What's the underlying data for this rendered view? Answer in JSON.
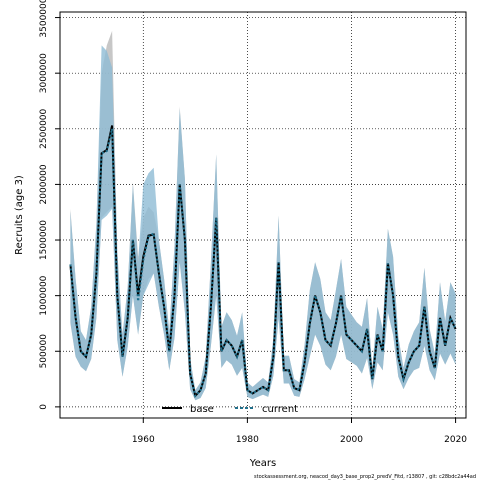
{
  "chart_data": {
    "type": "line",
    "xlabel": "Years",
    "ylabel": "Recruits (age 3)",
    "xlim": [
      1944,
      2022
    ],
    "ylim": [
      -100000,
      3550000
    ],
    "x_ticks": [
      1960,
      1980,
      2000,
      2020
    ],
    "y_ticks": [
      0,
      500000,
      1000000,
      1500000,
      2000000,
      2500000,
      3000000,
      3500000
    ],
    "grid": true,
    "legend_position": "bottom",
    "colors": {
      "band_current": "#8fbcd4",
      "band_base": "#b4b4b4",
      "base": "#000000",
      "current": "#1f6f8b"
    },
    "x": [
      1946,
      1947,
      1948,
      1949,
      1950,
      1951,
      1952,
      1953,
      1954,
      1955,
      1956,
      1957,
      1958,
      1959,
      1960,
      1961,
      1962,
      1963,
      1964,
      1965,
      1966,
      1967,
      1968,
      1969,
      1970,
      1971,
      1972,
      1973,
      1974,
      1975,
      1976,
      1977,
      1978,
      1979,
      1980,
      1981,
      1982,
      1983,
      1984,
      1985,
      1986,
      1987,
      1988,
      1989,
      1990,
      1991,
      1992,
      1993,
      1994,
      1995,
      1996,
      1997,
      1998,
      1999,
      2000,
      2001,
      2002,
      2003,
      2004,
      2005,
      2006,
      2007,
      2008,
      2009,
      2010,
      2011,
      2012,
      2013,
      2014,
      2015,
      2016,
      2017,
      2018,
      2019,
      2020
    ],
    "series": [
      {
        "name": "base",
        "values": [
          1280000,
          800000,
          500000,
          450000,
          650000,
          1200000,
          2280000,
          2310000,
          2530000,
          1000000,
          450000,
          800000,
          1500000,
          1000000,
          1350000,
          1540000,
          1550000,
          1200000,
          900000,
          500000,
          1000000,
          2000000,
          1500000,
          300000,
          100000,
          150000,
          300000,
          900000,
          1700000,
          500000,
          600000,
          550000,
          450000,
          600000,
          150000,
          120000,
          150000,
          180000,
          150000,
          450000,
          1300000,
          330000,
          330000,
          170000,
          150000,
          400000,
          750000,
          1000000,
          850000,
          600000,
          550000,
          750000,
          1000000,
          650000,
          600000,
          550000,
          500000,
          700000,
          250000,
          650000,
          500000,
          1290000,
          1000000,
          450000,
          250000,
          400000,
          500000,
          550000,
          900000,
          500000,
          350000,
          800000,
          550000,
          800000,
          700000
        ],
        "lower": [
          750000,
          450000,
          360000,
          320000,
          430000,
          800000,
          1700000,
          1750000,
          1800000,
          600000,
          270000,
          540000,
          1000000,
          650000,
          1000000,
          1150000,
          1200000,
          900000,
          650000,
          330000,
          620000,
          1300000,
          850000,
          160000,
          60000,
          80000,
          170000,
          550000,
          1000000,
          350000,
          420000,
          380000,
          280000,
          350000,
          90000,
          70000,
          90000,
          110000,
          90000,
          280000,
          800000,
          210000,
          210000,
          100000,
          90000,
          250000,
          450000,
          650000,
          550000,
          380000,
          330000,
          450000,
          650000,
          430000,
          400000,
          370000,
          300000,
          440000,
          160000,
          400000,
          330000,
          850000,
          650000,
          270000,
          160000,
          260000,
          330000,
          350000,
          550000,
          330000,
          240000,
          480000,
          380000,
          480000,
          380000
        ],
        "upper": [
          1780000,
          1150000,
          680000,
          600000,
          900000,
          1650000,
          3000000,
          3250000,
          3380000,
          1400000,
          650000,
          1080000,
          2020000,
          1350000,
          1700000,
          1800000,
          1750000,
          1500000,
          1150000,
          680000,
          1450000,
          2700000,
          2050000,
          440000,
          150000,
          220000,
          450000,
          1300000,
          2270000,
          720000,
          850000,
          780000,
          640000,
          850000,
          220000,
          180000,
          220000,
          260000,
          220000,
          620000,
          1720000,
          460000,
          460000,
          250000,
          220000,
          560000,
          1050000,
          1300000,
          1150000,
          850000,
          780000,
          1050000,
          1330000,
          900000,
          830000,
          760000,
          720000,
          980000,
          350000,
          900000,
          700000,
          1600000,
          1350000,
          630000,
          350000,
          560000,
          680000,
          760000,
          1250000,
          700000,
          480000,
          1120000,
          770000,
          1120000,
          1020000
        ]
      },
      {
        "name": "current",
        "values": [
          1280000,
          800000,
          500000,
          450000,
          650000,
          1200000,
          2280000,
          2300000,
          2500000,
          1000000,
          450000,
          800000,
          1500000,
          950000,
          1320000,
          1530000,
          1560000,
          1200000,
          900000,
          500000,
          1000000,
          2000000,
          1500000,
          300000,
          100000,
          150000,
          300000,
          900000,
          1700000,
          500000,
          600000,
          550000,
          450000,
          600000,
          150000,
          120000,
          150000,
          180000,
          150000,
          450000,
          1300000,
          330000,
          330000,
          170000,
          150000,
          400000,
          750000,
          1000000,
          850000,
          600000,
          550000,
          750000,
          1000000,
          650000,
          600000,
          550000,
          500000,
          700000,
          250000,
          650000,
          500000,
          1290000,
          1000000,
          450000,
          250000,
          400000,
          500000,
          550000,
          900000,
          500000,
          350000,
          800000,
          550000,
          800000,
          700000
        ],
        "lower": [
          760000,
          450000,
          360000,
          320000,
          430000,
          800000,
          1680000,
          1720000,
          1780000,
          600000,
          270000,
          540000,
          1000000,
          650000,
          1000000,
          1100000,
          1200000,
          900000,
          650000,
          330000,
          620000,
          1300000,
          850000,
          160000,
          60000,
          80000,
          170000,
          550000,
          1000000,
          350000,
          420000,
          380000,
          280000,
          350000,
          90000,
          70000,
          90000,
          110000,
          90000,
          280000,
          800000,
          210000,
          210000,
          100000,
          90000,
          250000,
          450000,
          650000,
          550000,
          380000,
          330000,
          450000,
          650000,
          430000,
          400000,
          370000,
          300000,
          440000,
          160000,
          400000,
          330000,
          850000,
          650000,
          270000,
          160000,
          260000,
          330000,
          350000,
          550000,
          330000,
          240000,
          480000,
          380000,
          480000,
          380000
        ],
        "upper": [
          1760000,
          1150000,
          680000,
          600000,
          900000,
          1650000,
          3250000,
          3200000,
          3050000,
          1400000,
          650000,
          1080000,
          2000000,
          1300000,
          2000000,
          2100000,
          2150000,
          1500000,
          1150000,
          680000,
          1450000,
          2680000,
          2050000,
          440000,
          150000,
          220000,
          450000,
          1300000,
          2270000,
          720000,
          850000,
          780000,
          640000,
          850000,
          220000,
          180000,
          220000,
          260000,
          220000,
          620000,
          1720000,
          460000,
          460000,
          250000,
          220000,
          560000,
          1050000,
          1300000,
          1150000,
          850000,
          780000,
          1050000,
          1330000,
          900000,
          830000,
          760000,
          720000,
          980000,
          350000,
          900000,
          700000,
          1600000,
          1350000,
          630000,
          350000,
          560000,
          680000,
          760000,
          1250000,
          700000,
          480000,
          1120000,
          770000,
          1120000,
          1020000
        ]
      }
    ]
  },
  "footnote": "stockassessment.org, neacod_day3_base_prop2_predV_Fitd, r13807 , git: c28bdc2a44ad"
}
